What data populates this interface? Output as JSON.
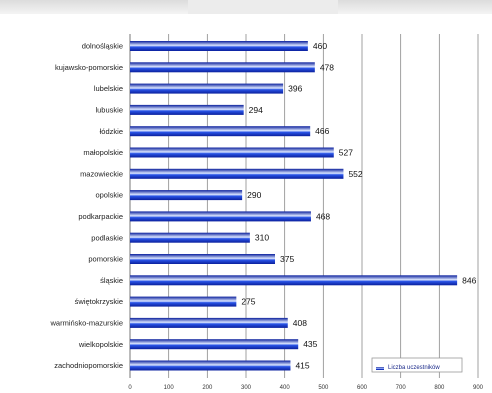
{
  "chart_data": {
    "type": "bar",
    "orientation": "horizontal",
    "categories": [
      "dolnośląskie",
      "kujawsko-pomorskie",
      "lubelskie",
      "lubuskie",
      "łódzkie",
      "małopolskie",
      "mazowieckie",
      "opolskie",
      "podkarpackie",
      "podlaskie",
      "pomorskie",
      "śląskie",
      "świętokrzyskie",
      "warmińsko-mazurskie",
      "wielkopolskie",
      "zachodniopomorskie"
    ],
    "values": [
      460,
      478,
      396,
      294,
      466,
      527,
      552,
      290,
      468,
      310,
      375,
      846,
      275,
      408,
      435,
      415
    ],
    "value_labels": [
      "460",
      "478",
      "396",
      "294",
      "466",
      "527",
      "552",
      "290",
      "468",
      "310",
      "375",
      "846",
      "275",
      "408",
      "435",
      "415"
    ],
    "xlim": [
      0,
      900
    ],
    "x_ticks": [
      "0",
      "100",
      "200",
      "300",
      "400",
      "500",
      "600",
      "700",
      "800",
      "900"
    ],
    "grid": true,
    "legend": {
      "label": "Liczba uczestników",
      "position": "bottom-right"
    },
    "colors": {
      "bar_dark": "#0a1f9c",
      "bar_mid": "#2a55e8",
      "bar_light": "#dce6ff"
    },
    "title": "",
    "xlabel": "",
    "ylabel": ""
  }
}
